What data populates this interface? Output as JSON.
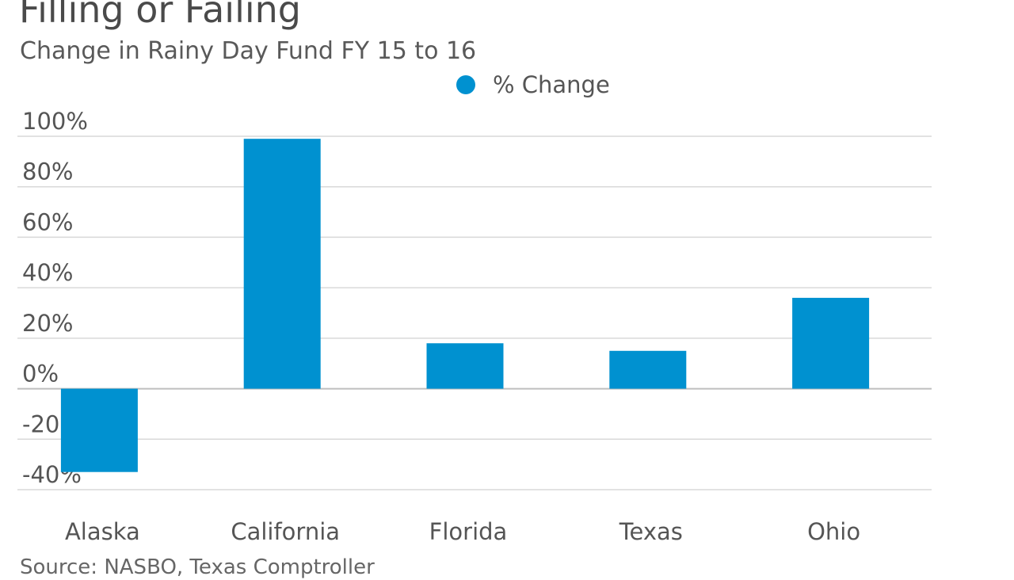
{
  "chart": {
    "title": "Filling or Failing",
    "subtitle": "Change in Rainy Day Fund FY 15 to 16",
    "source": "Source: NASBO, Texas Comptroller"
  },
  "legend": {
    "label": "% Change"
  },
  "colors": {
    "bar": "#0091d0",
    "grid": "#d9d9d9",
    "zero_line": "#bfbfbf",
    "tick_text": "#555555"
  },
  "chart_data": {
    "type": "bar",
    "title": "Filling or Failing",
    "subtitle": "Change in Rainy Day Fund FY 15 to 16",
    "categories": [
      "Alaska",
      "California",
      "Florida",
      "Texas",
      "Ohio"
    ],
    "series": [
      {
        "name": "% Change",
        "values": [
          -33,
          99,
          18,
          15,
          36
        ]
      }
    ],
    "xlabel": "",
    "ylabel": "",
    "ylim": [
      -40,
      100
    ],
    "yticks": [
      100,
      80,
      60,
      40,
      20,
      0,
      -20,
      -40
    ],
    "ytick_labels": [
      "100%",
      "80%",
      "60%",
      "40%",
      "20%",
      "0%",
      "-20%",
      "-40%"
    ],
    "grid": true,
    "legend_position": "top-center",
    "source": "Source: NASBO, Texas Comptroller"
  }
}
